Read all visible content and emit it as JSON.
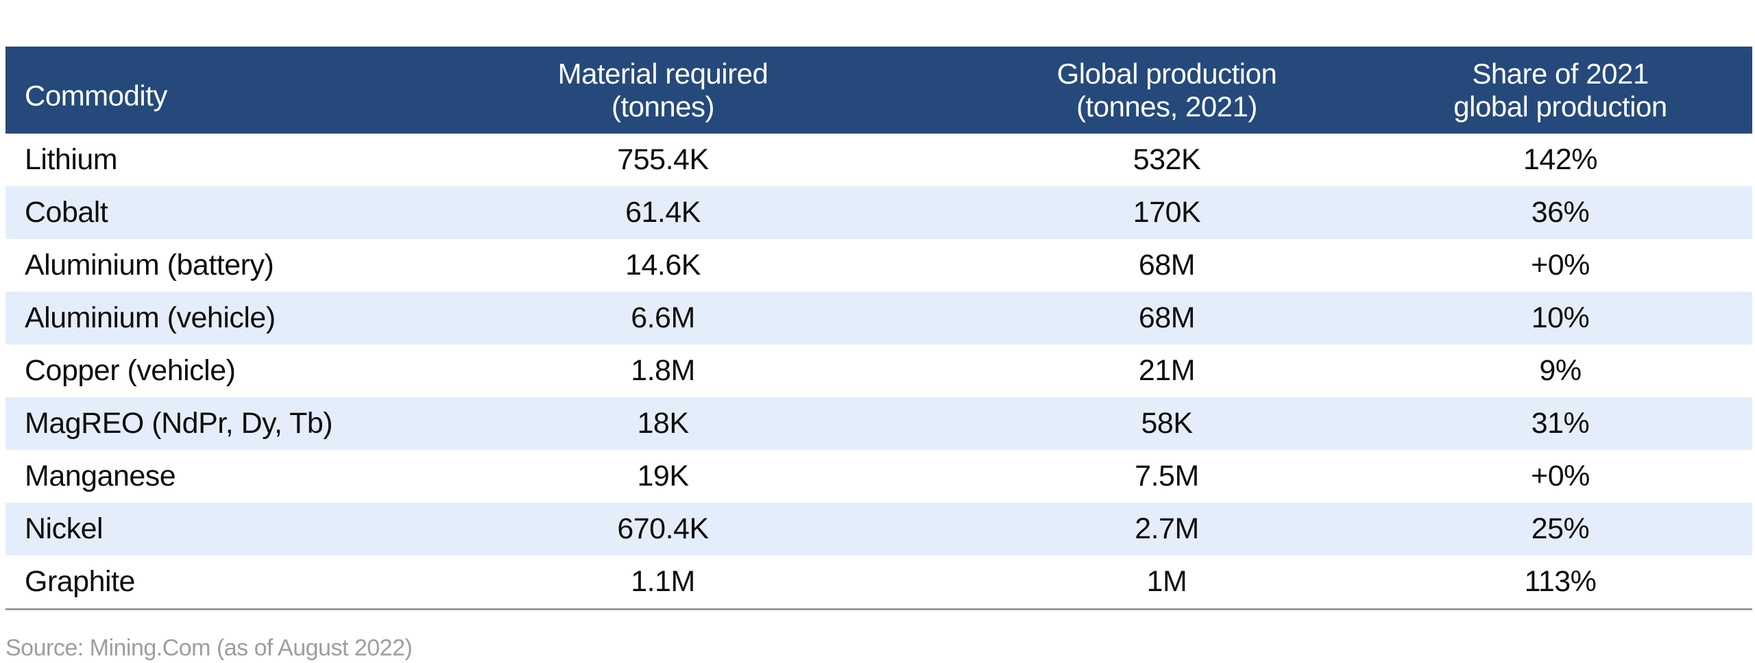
{
  "colors": {
    "header_bg": "#25497b",
    "header_text": "#ffffff",
    "row_bg": "#ffffff",
    "row_alt_bg": "#e4eefa",
    "body_text": "#0d0d0d",
    "divider": "#9a9a9a",
    "source_text": "#9e9e9e"
  },
  "table": {
    "header_display": [
      "Commodity",
      "Material required\n(tonnes)",
      "Global production\n(tonnes, 2021)",
      "Share of 2021\nglobal production"
    ]
  },
  "chart_data": {
    "type": "table",
    "title": "",
    "columns": [
      "Commodity",
      "Material required (tonnes)",
      "Global production (tonnes, 2021)",
      "Share of 2021 global production"
    ],
    "rows": [
      [
        "Lithium",
        "755.4K",
        "532K",
        "142%"
      ],
      [
        "Cobalt",
        "61.4K",
        "170K",
        "36%"
      ],
      [
        "Aluminium (battery)",
        "14.6K",
        "68M",
        "+0%"
      ],
      [
        "Aluminium (vehicle)",
        "6.6M",
        "68M",
        "10%"
      ],
      [
        "Copper (vehicle)",
        "1.8M",
        "21M",
        "9%"
      ],
      [
        "MagREO (NdPr, Dy, Tb)",
        "18K",
        "58K",
        "31%"
      ],
      [
        "Manganese",
        "19K",
        "7.5M",
        "+0%"
      ],
      [
        "Nickel",
        "670.4K",
        "2.7M",
        "25%"
      ],
      [
        "Graphite",
        "1.1M",
        "1M",
        "113%"
      ]
    ],
    "source": "Source: Mining.Com (as of August 2022)"
  },
  "source": {
    "label": "Source: Mining.Com (as of August 2022)"
  }
}
